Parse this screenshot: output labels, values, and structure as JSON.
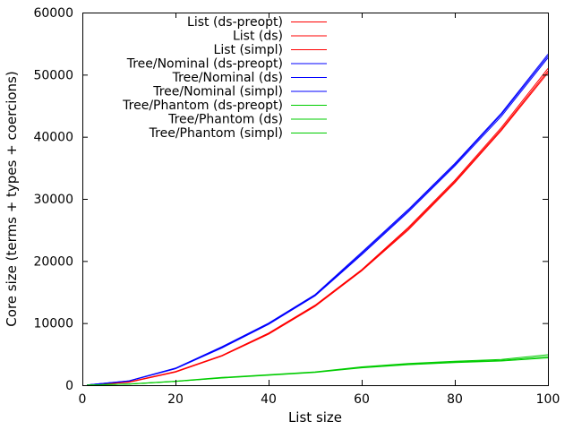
{
  "chart_data": {
    "type": "line",
    "title": "",
    "xlabel": "List size",
    "ylabel": "Core size (terms + types + coercions)",
    "xlim": [
      0,
      100
    ],
    "ylim": [
      0,
      60000
    ],
    "xticks": [
      0,
      20,
      40,
      60,
      80,
      100
    ],
    "yticks": [
      0,
      10000,
      20000,
      30000,
      40000,
      50000,
      60000
    ],
    "grid": false,
    "legend_position": "top-left",
    "x": [
      1,
      10,
      20,
      30,
      40,
      50,
      60,
      70,
      80,
      90,
      100
    ],
    "series": [
      {
        "name": "List (ds-preopt)",
        "color": "#ff0000",
        "values": [
          30,
          520,
          2200,
          4800,
          8400,
          12900,
          18600,
          25400,
          33000,
          41500,
          51000
        ]
      },
      {
        "name": "List (ds)",
        "color": "#ff0000",
        "values": [
          30,
          500,
          2150,
          4750,
          8300,
          12800,
          18500,
          25200,
          32800,
          41200,
          50600
        ]
      },
      {
        "name": "List (simpl)",
        "color": "#ff0000",
        "values": [
          30,
          480,
          2100,
          4700,
          8200,
          12700,
          18400,
          25000,
          32600,
          41000,
          50300
        ]
      },
      {
        "name": "Tree/Nominal (ds-preopt)",
        "color": "#0000ff",
        "values": [
          40,
          700,
          2750,
          6200,
          10000,
          14600,
          21400,
          28300,
          35700,
          43800,
          53300
        ]
      },
      {
        "name": "Tree/Nominal (ds)",
        "color": "#0000ff",
        "values": [
          40,
          680,
          2700,
          6100,
          9900,
          14500,
          21200,
          28100,
          35500,
          43600,
          53000
        ]
      },
      {
        "name": "Tree/Nominal (simpl)",
        "color": "#0000ff",
        "values": [
          40,
          660,
          2650,
          6000,
          9800,
          14400,
          21000,
          27900,
          35300,
          43300,
          52700
        ]
      },
      {
        "name": "Tree/Phantom (ds-preopt)",
        "color": "#00cc00",
        "values": [
          20,
          200,
          650,
          1250,
          1700,
          2150,
          2950,
          3500,
          3850,
          4150,
          4900
        ]
      },
      {
        "name": "Tree/Phantom (ds)",
        "color": "#00cc00",
        "values": [
          20,
          190,
          620,
          1200,
          1650,
          2100,
          2850,
          3400,
          3750,
          4000,
          4600
        ]
      },
      {
        "name": "Tree/Phantom (simpl)",
        "color": "#00cc00",
        "values": [
          20,
          180,
          600,
          1150,
          1600,
          2050,
          2800,
          3300,
          3650,
          3900,
          4400
        ]
      }
    ]
  }
}
